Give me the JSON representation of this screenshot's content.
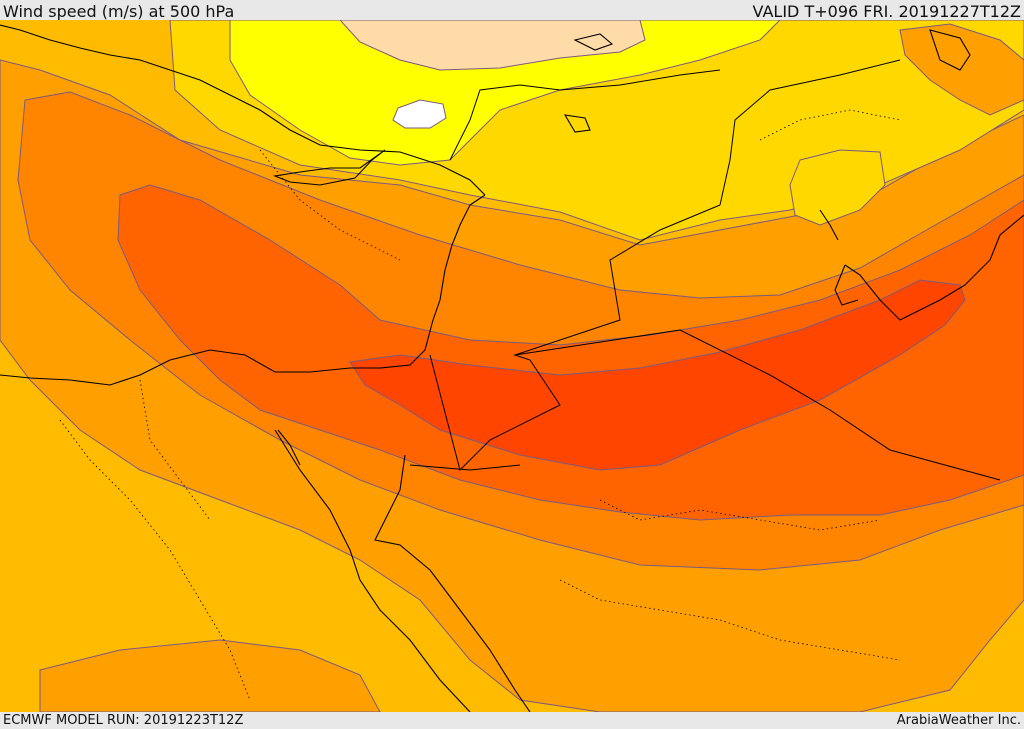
{
  "header": {
    "title": "Wind speed (m/s) at 500 hPa",
    "valid": "VALID T+096 FRI. 20191227T12Z"
  },
  "footer": {
    "model_run": "ECMWF MODEL RUN: 20191223T12Z",
    "credit": "ArabiaWeather Inc."
  },
  "map": {
    "variable": "wind speed",
    "level": "500 hPa",
    "units": "m/s",
    "colors": {
      "weakest": "#ffffff",
      "very_weak": "#ffdba8",
      "weak": "#ffff00",
      "light": "#ffd800",
      "low_moderate": "#ffbb00",
      "moderate": "#ff9f00",
      "strong": "#ff8500",
      "very_strong": "#ff6400",
      "jet_core": "#ff4500",
      "contour_line": "#7a5a80",
      "coastline": "#000000",
      "border": "#000000"
    }
  }
}
